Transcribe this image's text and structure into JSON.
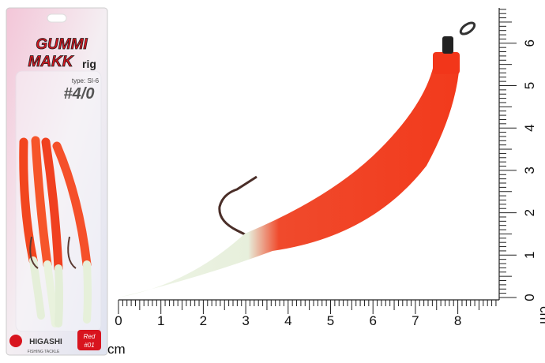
{
  "package": {
    "brand_line1": "GUMMI",
    "brand_line2": "MAKK",
    "brand_suffix": "rig",
    "type_text": "type: SI-6",
    "size_text": "#4/0",
    "maker": "HIGASHI",
    "maker_tagline": "FISHING TACKLE",
    "color_badge_line1": "Red",
    "color_badge_line2": "#01"
  },
  "ruler": {
    "unit": "cm",
    "horizontal_labels": [
      "0",
      "1",
      "2",
      "3",
      "4",
      "5",
      "6",
      "7",
      "8"
    ],
    "vertical_labels": [
      "0",
      "1",
      "2",
      "3",
      "4",
      "5",
      "6"
    ]
  },
  "colors": {
    "lure_red": "#f23a1c",
    "lure_glow": "#e6f0dc",
    "badge_red": "#d8141e"
  }
}
